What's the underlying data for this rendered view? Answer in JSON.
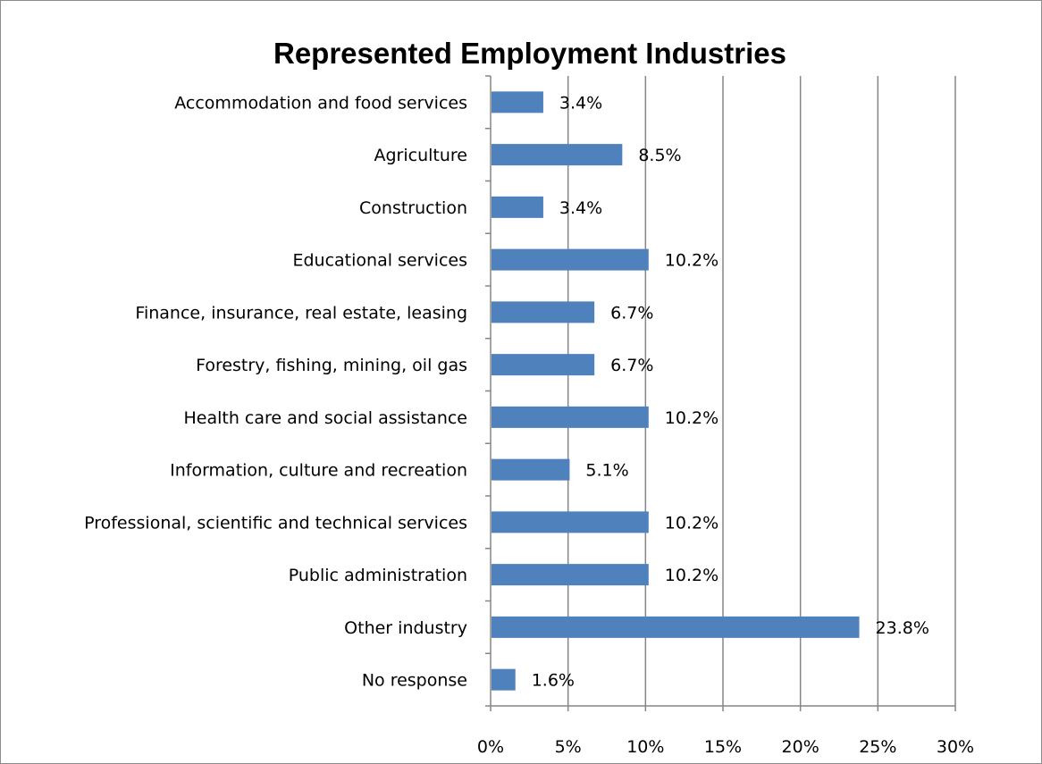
{
  "chart_data": {
    "type": "bar",
    "orientation": "horizontal",
    "title": "Represented Employment Industries",
    "categories": [
      "Accommodation and food services",
      "Agriculture",
      "Construction",
      "Educational services",
      "Finance, insurance, real estate, leasing",
      "Forestry, fishing, mining, oil gas",
      "Health care and social assistance",
      "Information, culture and recreation",
      "Professional, scientific and technical services",
      "Public administration",
      "Other industry",
      "No response"
    ],
    "values": [
      3.4,
      8.5,
      3.4,
      10.2,
      6.7,
      6.7,
      10.2,
      5.1,
      10.2,
      10.2,
      23.8,
      1.6
    ],
    "data_labels": [
      "3.4%",
      "8.5%",
      "3.4%",
      "10.2%",
      "6.7%",
      "6.7%",
      "10.2%",
      "5.1%",
      "10.2%",
      "10.2%",
      "23.8%",
      "1.6%"
    ],
    "xlim": [
      0,
      30
    ],
    "xticks": [
      0,
      5,
      10,
      15,
      20,
      25,
      30
    ],
    "xtick_labels": [
      "0%",
      "5%",
      "10%",
      "15%",
      "20%",
      "25%",
      "30%"
    ],
    "grid": "vertical major gridlines",
    "legend": "none",
    "bar_color": "#4f81bd",
    "gridline_color": "#868686"
  }
}
